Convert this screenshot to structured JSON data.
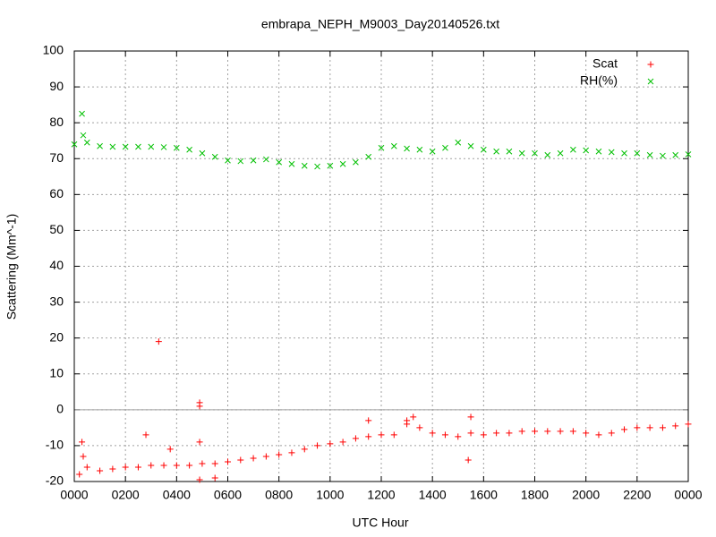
{
  "chart_data": {
    "type": "scatter",
    "title": "embrapa_NEPH_M9003_Day20140526.txt",
    "xlabel": "UTC Hour",
    "ylabel": "Scattering (Mm^-1)",
    "xlim": [
      0,
      24
    ],
    "xticks": [
      {
        "value": 0,
        "label": "0000"
      },
      {
        "value": 2,
        "label": "0200"
      },
      {
        "value": 4,
        "label": "0400"
      },
      {
        "value": 6,
        "label": "0600"
      },
      {
        "value": 8,
        "label": "0800"
      },
      {
        "value": 10,
        "label": "1000"
      },
      {
        "value": 12,
        "label": "1200"
      },
      {
        "value": 14,
        "label": "1400"
      },
      {
        "value": 16,
        "label": "1600"
      },
      {
        "value": 18,
        "label": "1800"
      },
      {
        "value": 20,
        "label": "2000"
      },
      {
        "value": 22,
        "label": "2200"
      },
      {
        "value": 24,
        "label": "0000"
      }
    ],
    "ylim": [
      -20,
      100
    ],
    "yticks": [
      -20,
      -10,
      0,
      10,
      20,
      30,
      40,
      50,
      60,
      70,
      80,
      90,
      100
    ],
    "grid": true,
    "zeroaxis": true,
    "legend": "upper right",
    "series": [
      {
        "name": "Scat",
        "color": "#ff0000",
        "marker": "plus",
        "x": [
          0.2,
          0.3,
          0.35,
          0.5,
          1,
          1.5,
          2,
          2.5,
          3,
          3.5,
          4,
          4.5,
          5,
          5.5,
          6,
          6.5,
          7,
          7.5,
          8,
          8.5,
          9,
          9.5,
          10,
          10.5,
          11,
          11.5,
          12,
          12.5,
          13,
          13.25,
          13.5,
          14,
          14.5,
          15,
          15.5,
          16,
          16.5,
          17,
          17.5,
          18,
          18.5,
          19,
          19.5,
          20,
          20.5,
          21,
          21.5,
          22,
          22.5,
          23,
          23.5,
          24,
          3.3,
          4.9,
          4.9,
          2.8,
          4.9,
          5.5,
          15.4,
          15.5,
          13.0,
          11.5,
          4.9,
          3.75
        ],
        "values": [
          -18,
          -9,
          -13,
          -16,
          -17,
          -16.5,
          -16,
          -16,
          -15.5,
          -15.5,
          -15.5,
          -15.5,
          -15,
          -15,
          -14.5,
          -14,
          -13.5,
          -13,
          -12.5,
          -12,
          -11,
          -10,
          -9.5,
          -9,
          -8,
          -7.5,
          -7,
          -7,
          -4,
          -2,
          -5,
          -6.5,
          -7,
          -7.5,
          -6.5,
          -7,
          -6.5,
          -6.5,
          -6,
          -6,
          -6,
          -6,
          -6,
          -6.5,
          -7,
          -6.5,
          -5.5,
          -5,
          -5,
          -5,
          -4.5,
          -4,
          19,
          2,
          1,
          -7,
          -9,
          -19,
          -14,
          -2,
          -3,
          -3,
          -19.5,
          -11
        ]
      },
      {
        "name": "RH(%)",
        "color": "#00c000",
        "marker": "cross",
        "x": [
          0,
          0.3,
          0.35,
          0.5,
          1,
          1.5,
          2,
          2.5,
          3,
          3.5,
          4,
          4.5,
          5,
          5.5,
          6,
          6.5,
          7,
          7.5,
          8,
          8.5,
          9,
          9.5,
          10,
          10.5,
          11,
          11.5,
          12,
          12.5,
          13,
          13.5,
          14,
          14.5,
          15,
          15.5,
          16,
          16.5,
          17,
          17.5,
          18,
          18.5,
          19,
          19.5,
          20,
          20.5,
          21,
          21.5,
          22,
          22.5,
          23,
          23.5,
          24
        ],
        "values": [
          74,
          82.5,
          76.5,
          74.5,
          73.5,
          73.3,
          73.3,
          73.3,
          73.3,
          73.2,
          73,
          72.5,
          71.5,
          70.5,
          69.5,
          69.3,
          69.5,
          69.8,
          69,
          68.5,
          68,
          67.8,
          68,
          68.5,
          69,
          70.5,
          73,
          73.5,
          72.8,
          72.5,
          72,
          73,
          74.5,
          73.5,
          72.5,
          72,
          72,
          71.5,
          71.5,
          71,
          71.5,
          72.5,
          72.3,
          72,
          71.8,
          71.5,
          71.5,
          71,
          70.8,
          71,
          71.2
        ]
      }
    ]
  }
}
